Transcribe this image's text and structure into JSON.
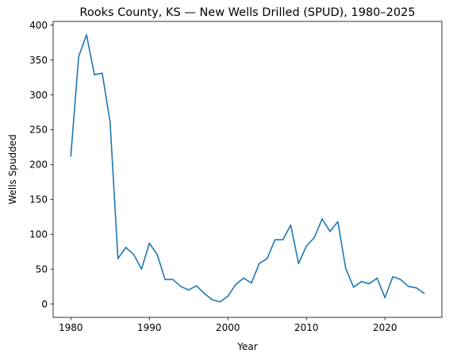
{
  "chart_data": {
    "type": "line",
    "title": "Rooks County, KS — New Wells Drilled (SPUD), 1980–2025",
    "xlabel": "Year",
    "ylabel": "Wells Spudded",
    "xlim": [
      1977.75,
      2027.25
    ],
    "ylim": [
      -19.3,
      405.3
    ],
    "xticks": [
      1980,
      1990,
      2000,
      2010,
      2020
    ],
    "yticks": [
      0,
      50,
      100,
      150,
      200,
      250,
      300,
      350,
      400
    ],
    "grid": false,
    "legend": "none",
    "series_color": "#1f77b4",
    "series": [
      {
        "x": [
          1980,
          1981,
          1982,
          1983,
          1984,
          1985,
          1986,
          1987,
          1988,
          1989,
          1990,
          1991,
          1992,
          1993,
          1994,
          1995,
          1996,
          1997,
          1998,
          1999,
          2000,
          2001,
          2002,
          2003,
          2004,
          2005,
          2006,
          2007,
          2008,
          2009,
          2010,
          2011,
          2012,
          2013,
          2014,
          2015,
          2016,
          2017,
          2018,
          2019,
          2020,
          2021,
          2022,
          2023,
          2024,
          2025
        ],
        "values": [
          212,
          355,
          386,
          329,
          331,
          261,
          65,
          81,
          71,
          50,
          87,
          71,
          35,
          35,
          25,
          20,
          26,
          15,
          6,
          3,
          11,
          28,
          37,
          30,
          58,
          65,
          92,
          92,
          113,
          58,
          83,
          95,
          122,
          104,
          118,
          51,
          24,
          32,
          29,
          37,
          9,
          39,
          35,
          25,
          23,
          15
        ]
      }
    ]
  }
}
